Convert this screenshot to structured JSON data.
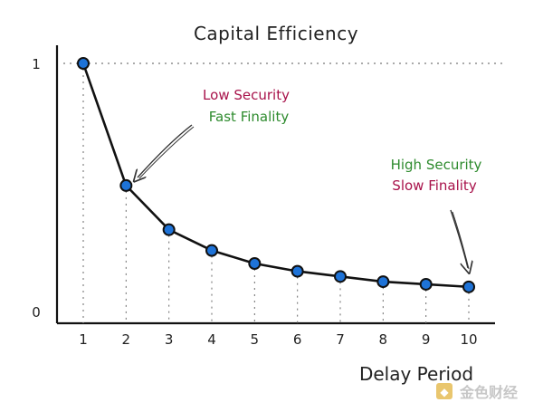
{
  "chart_data": {
    "type": "line",
    "title": "Capital Efficiency",
    "xlabel": "Delay Period",
    "ylabel": "",
    "x": [
      1,
      2,
      3,
      4,
      5,
      6,
      7,
      8,
      9,
      10
    ],
    "y": [
      1.0,
      0.53,
      0.36,
      0.28,
      0.23,
      0.2,
      0.18,
      0.16,
      0.15,
      0.14
    ],
    "x_tick_labels": [
      "1",
      "2",
      "3",
      "4",
      "5",
      "6",
      "7",
      "8",
      "9",
      "10"
    ],
    "y_tick_labels": [
      "0",
      "1"
    ],
    "ylim": [
      0,
      1
    ],
    "xlim": [
      1,
      10
    ],
    "reference_line_y": 1,
    "grid": false,
    "annotations": [
      {
        "lines": [
          "Low Security",
          "Fast Finality"
        ],
        "points_to_x": 2
      },
      {
        "lines": [
          "High Security",
          "Slow Finality"
        ],
        "points_to_x": 10
      }
    ]
  },
  "colors": {
    "line": "#111111",
    "marker": "#1e73d8",
    "security_text": "#a8124a",
    "finality_text": "#2e8b2e"
  },
  "watermark": {
    "text": "金色财经",
    "icon": "gold-coin-logo-icon"
  }
}
